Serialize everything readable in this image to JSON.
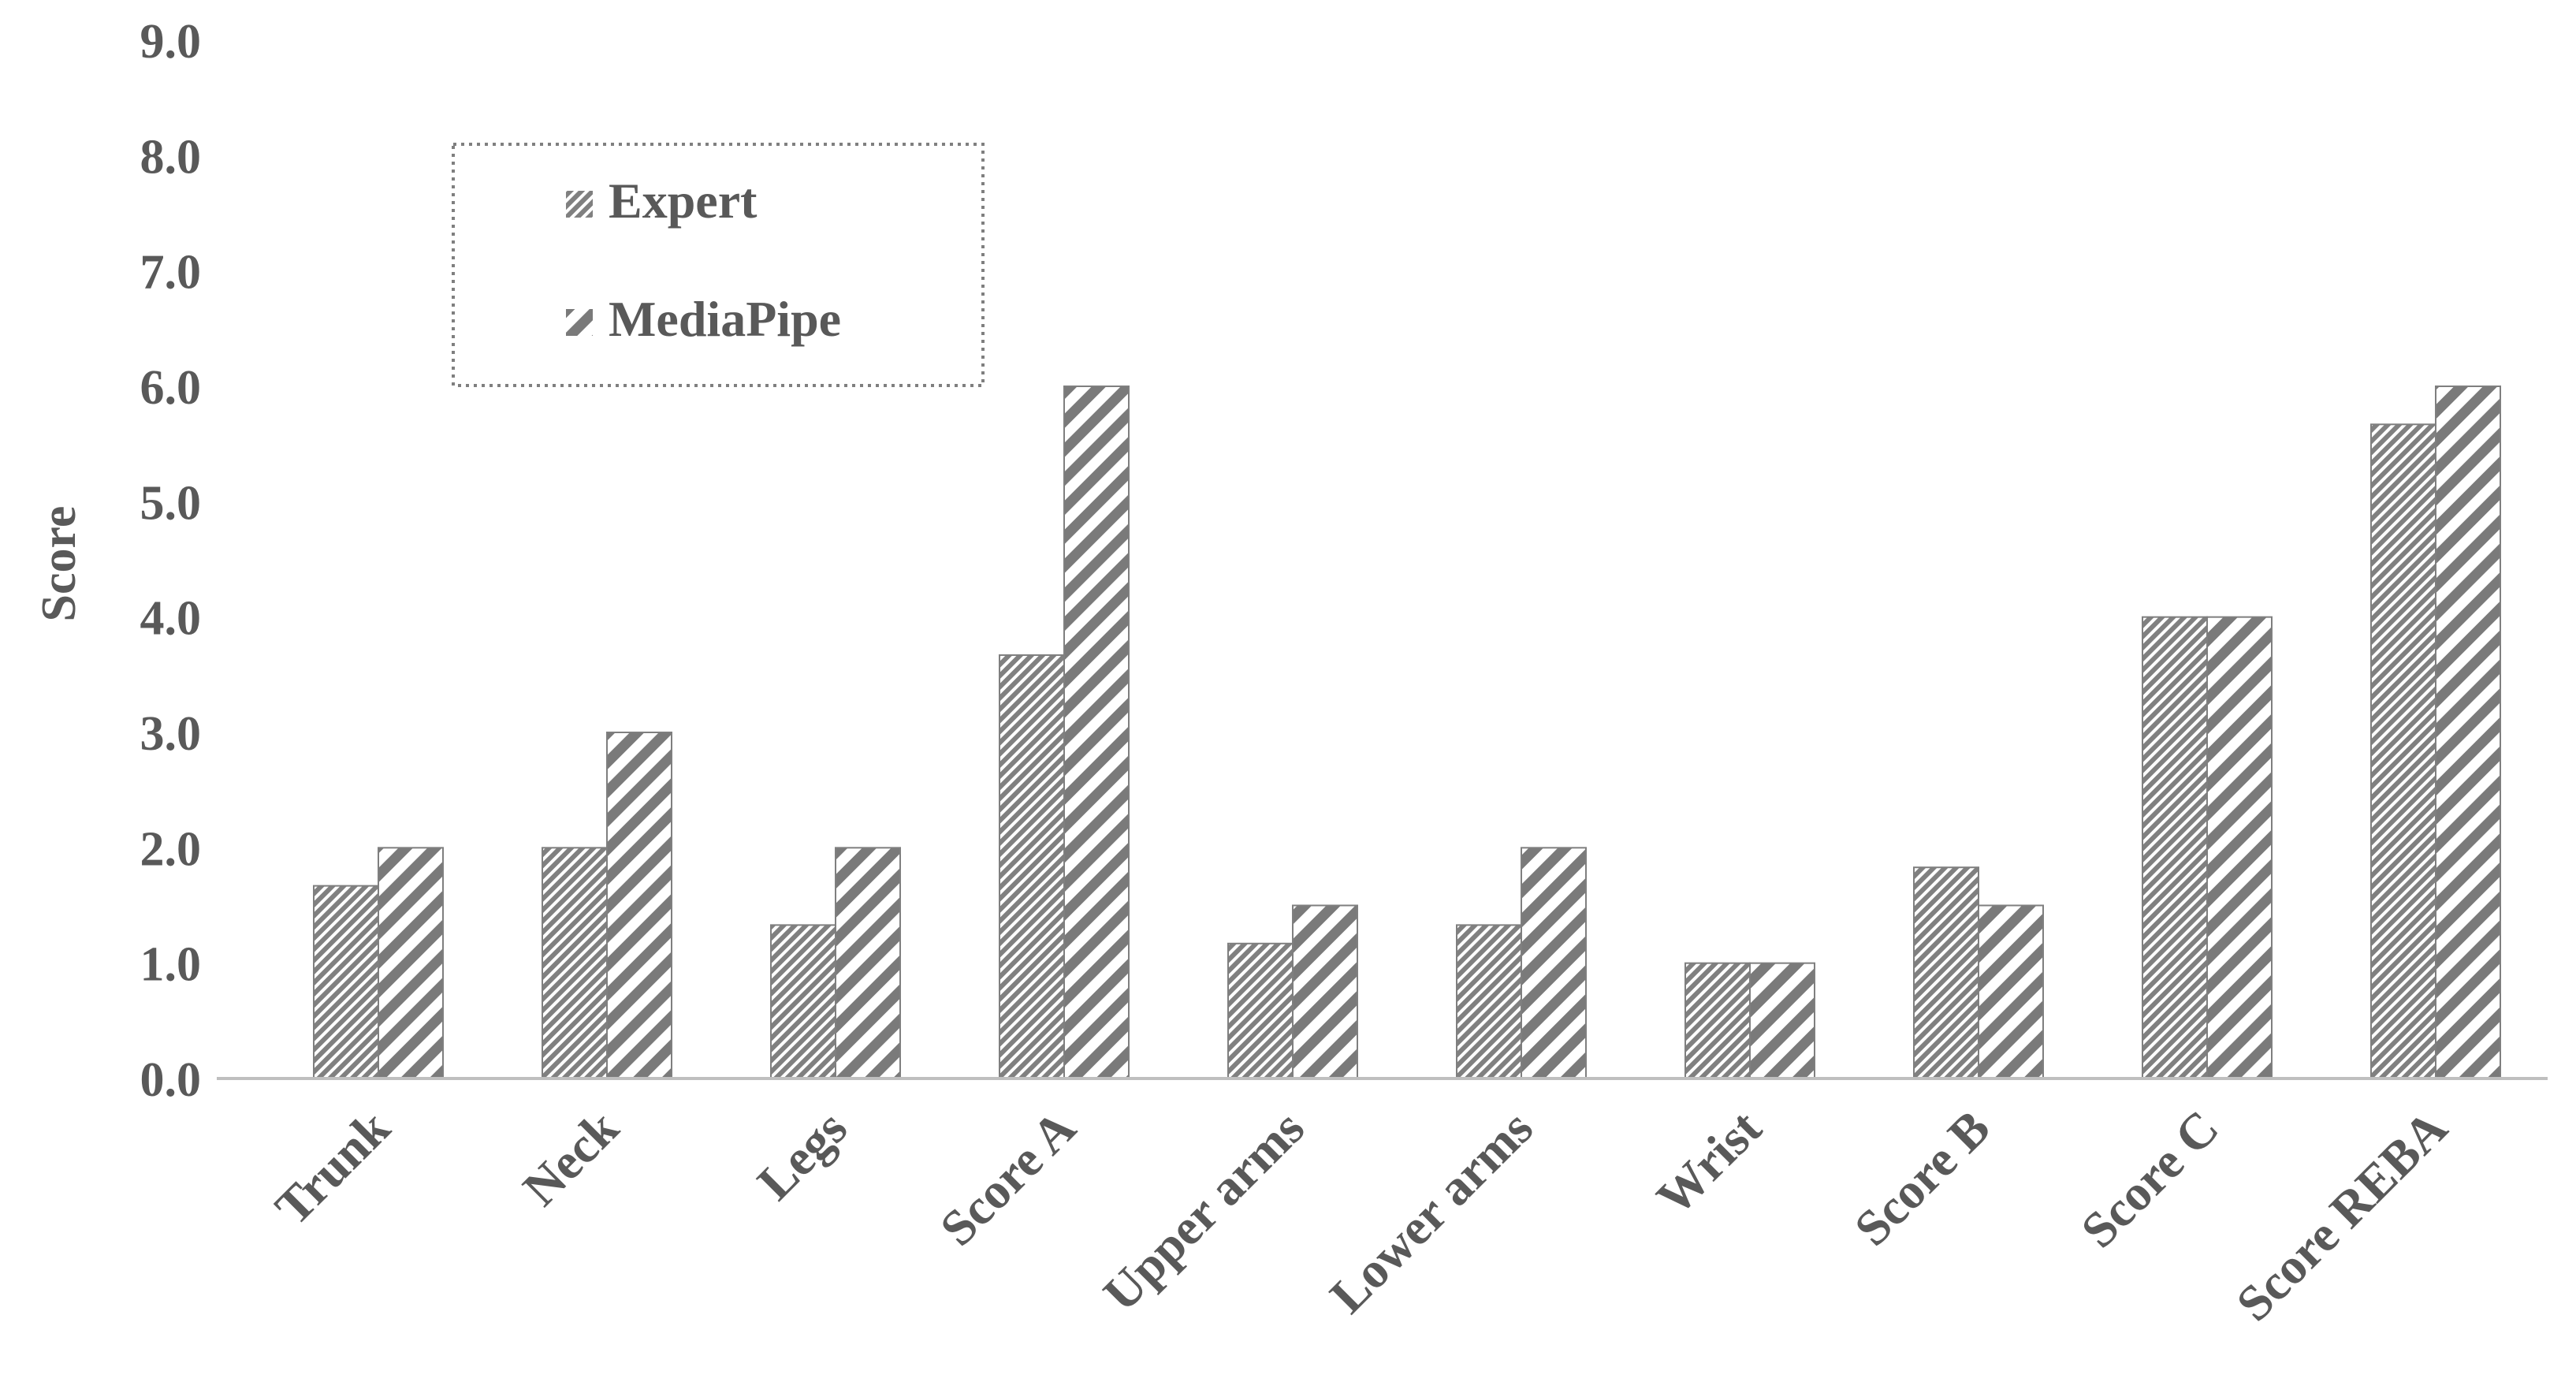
{
  "chart_data": {
    "type": "bar",
    "title": "",
    "xlabel": "",
    "ylabel": "Score",
    "ylim": [
      0,
      9
    ],
    "yticks": [
      "0.0",
      "1.0",
      "2.0",
      "3.0",
      "4.0",
      "5.0",
      "6.0",
      "7.0",
      "8.0",
      "9.0"
    ],
    "grid": false,
    "legend_position": "top-left",
    "categories": [
      "Trunk",
      "Neck",
      "Legs",
      "Score A",
      "Upper arms",
      "Lower arms",
      "Wrist",
      "Score B",
      "Score C",
      "Score REBA"
    ],
    "series": [
      {
        "name": "Expert",
        "values": [
          1.67,
          2.0,
          1.33,
          3.67,
          1.17,
          1.33,
          1.0,
          1.83,
          4.0,
          5.67
        ],
        "pattern": "fine-diagonal-hatch"
      },
      {
        "name": "MediaPipe",
        "values": [
          2.0,
          3.0,
          2.0,
          6.0,
          1.5,
          2.0,
          1.0,
          1.5,
          4.0,
          6.0
        ],
        "pattern": "coarse-diagonal-stripes"
      }
    ],
    "colors": {
      "text": "#595959",
      "bar_stroke": "#7f7f7f",
      "hatch": "#808080",
      "axis": "#bfbfbf",
      "legend_border": "#7f7f7f"
    }
  }
}
